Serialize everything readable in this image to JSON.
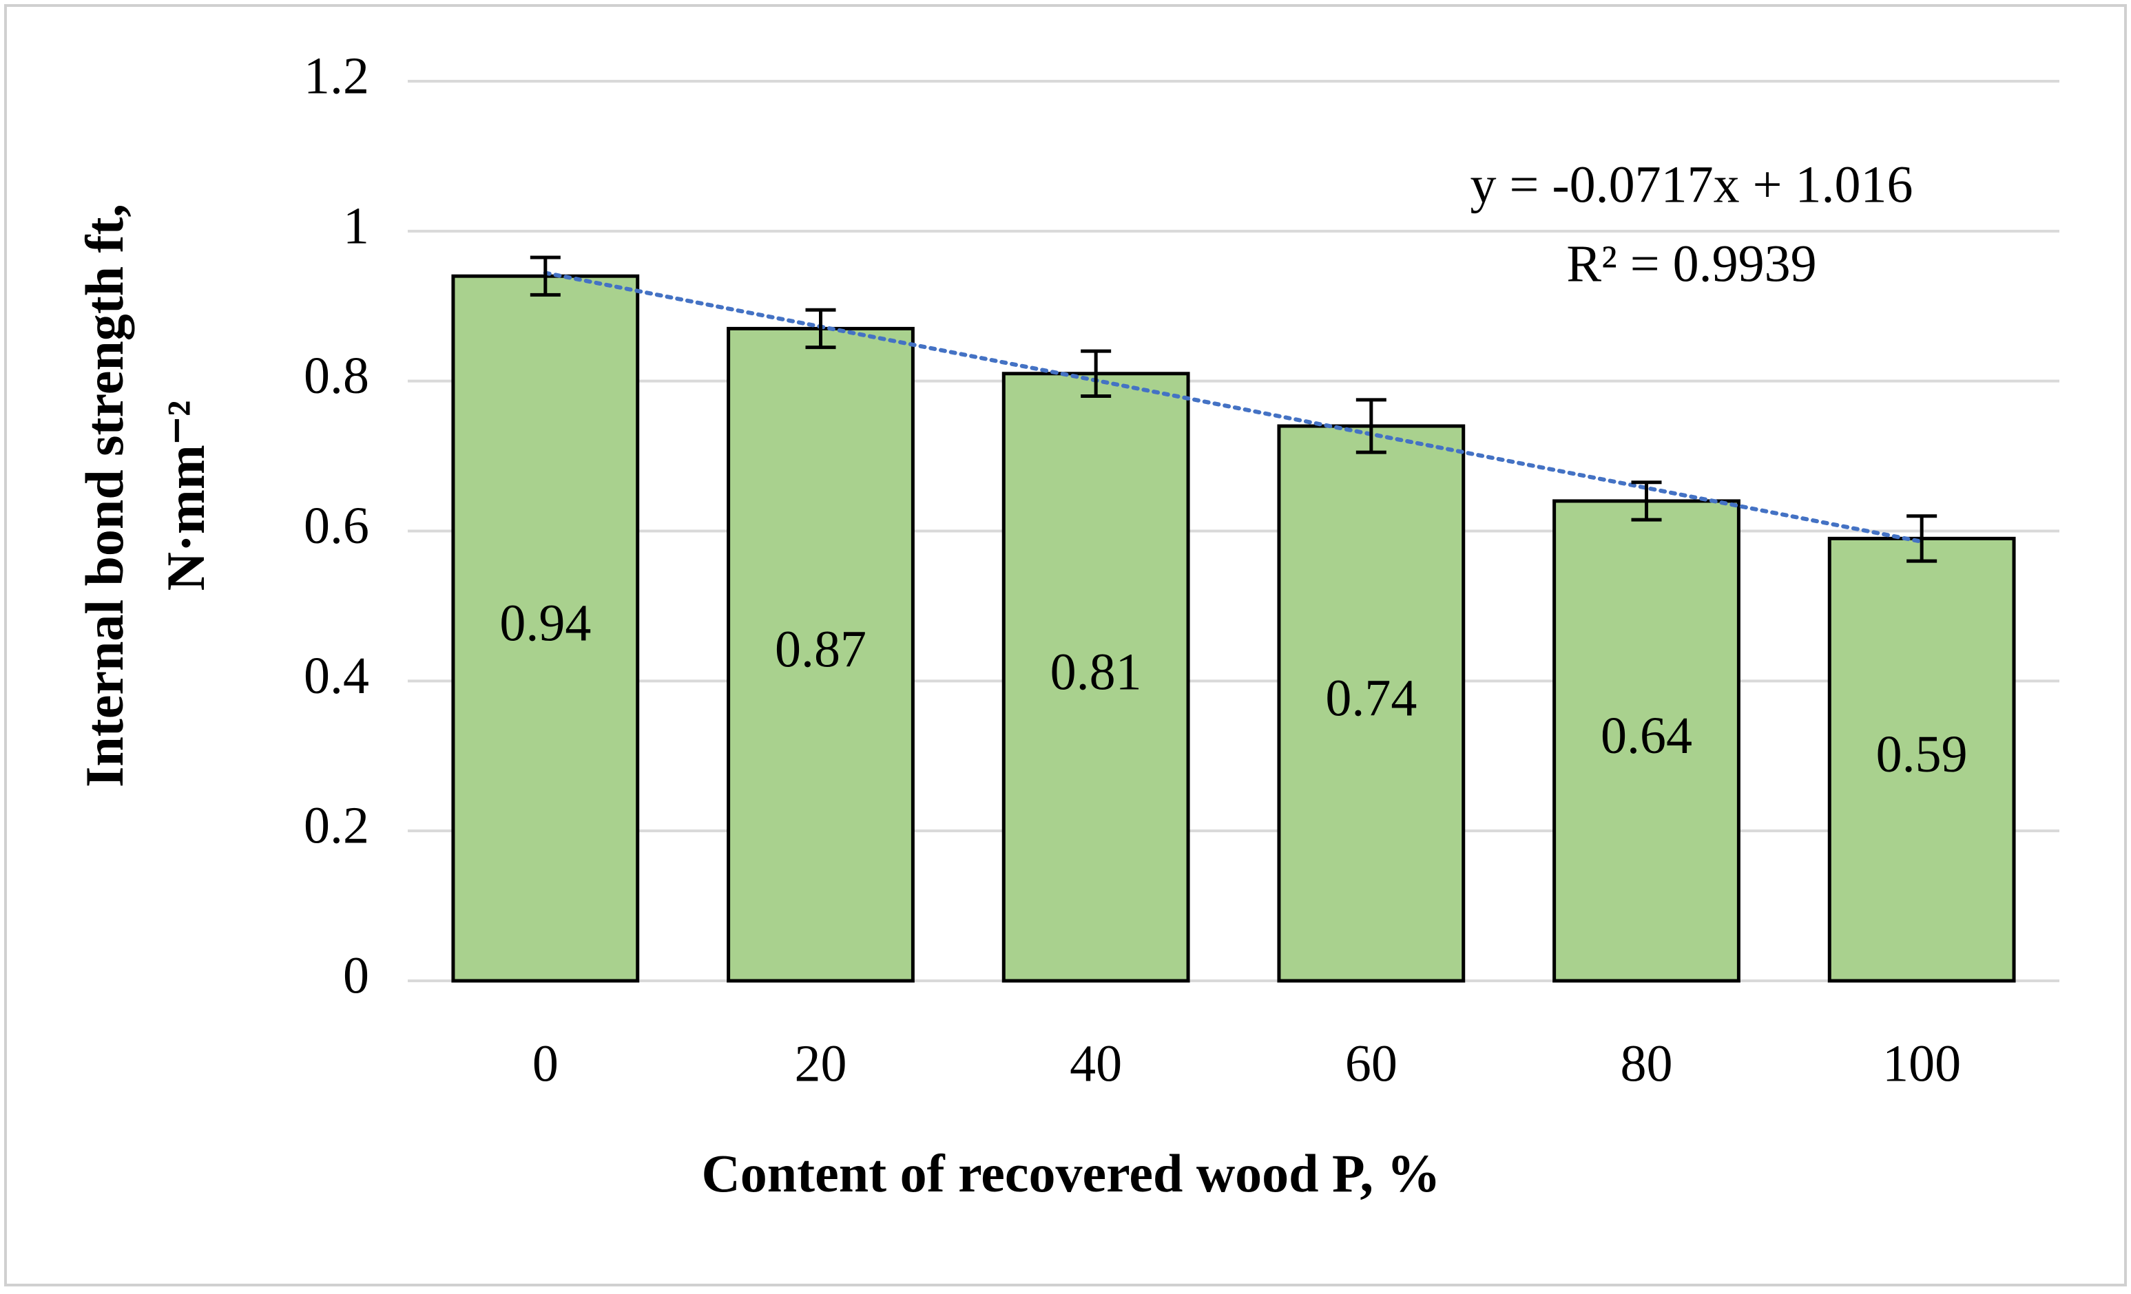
{
  "chart_data": {
    "type": "bar",
    "categories": [
      "0",
      "20",
      "40",
      "60",
      "80",
      "100"
    ],
    "values": [
      0.94,
      0.87,
      0.81,
      0.74,
      0.64,
      0.59
    ],
    "errors": [
      0.025,
      0.025,
      0.03,
      0.035,
      0.025,
      0.03
    ],
    "color": "#a9d18e",
    "ylim": [
      0,
      1.2
    ],
    "yticks": [
      0,
      0.2,
      0.4,
      0.6,
      0.8,
      1,
      1.2
    ],
    "grid": true,
    "xlabel": "Content of recovered wood P, %",
    "ylabel": [
      "Internal bond strength ft,",
      "N·mm⁻²"
    ],
    "trendline": {
      "slope": -0.0717,
      "intercept": 1.016,
      "color": "#4472c4"
    },
    "annotations": [
      "y = -0.0717x + 1.016",
      "R² = 0.9939"
    ]
  }
}
